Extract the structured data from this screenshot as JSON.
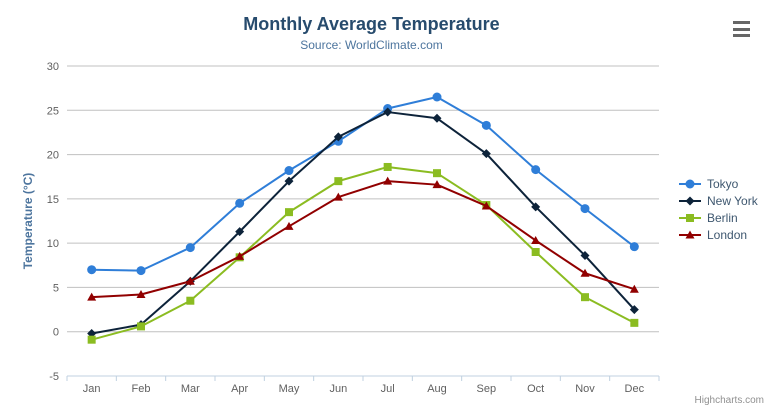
{
  "header": {
    "title": "Monthly Average Temperature",
    "subtitle": "Source: WorldClimate.com"
  },
  "credits": "Highcharts.com",
  "chart_data": {
    "type": "line",
    "title": "Monthly Average Temperature",
    "subtitle": "Source: WorldClimate.com",
    "xlabel": "",
    "ylabel": "Temperature (°C)",
    "categories": [
      "Jan",
      "Feb",
      "Mar",
      "Apr",
      "May",
      "Jun",
      "Jul",
      "Aug",
      "Sep",
      "Oct",
      "Nov",
      "Dec"
    ],
    "ylim": [
      -5,
      30
    ],
    "ytick_interval": 5,
    "grid": true,
    "legend_position": "right",
    "series": [
      {
        "name": "Tokyo",
        "color": "#2f7ed8",
        "marker": "circle",
        "values": [
          7.0,
          6.9,
          9.5,
          14.5,
          18.2,
          21.5,
          25.2,
          26.5,
          23.3,
          18.3,
          13.9,
          9.6
        ]
      },
      {
        "name": "New York",
        "color": "#0d233a",
        "marker": "diamond",
        "values": [
          -0.2,
          0.8,
          5.7,
          11.3,
          17.0,
          22.0,
          24.8,
          24.1,
          20.1,
          14.1,
          8.6,
          2.5
        ]
      },
      {
        "name": "Berlin",
        "color": "#8bbc21",
        "marker": "square",
        "values": [
          -0.9,
          0.6,
          3.5,
          8.4,
          13.5,
          17.0,
          18.6,
          17.9,
          14.3,
          9.0,
          3.9,
          1.0
        ]
      },
      {
        "name": "London",
        "color": "#910000",
        "marker": "triangle",
        "values": [
          3.9,
          4.2,
          5.7,
          8.5,
          11.9,
          15.2,
          17.0,
          16.6,
          14.2,
          10.3,
          6.6,
          4.8
        ]
      }
    ]
  },
  "colors": {
    "title": "#274b6d",
    "subtitle": "#4d759e",
    "axis_title": "#4d759e",
    "axis_label": "#606060",
    "legend_text": "#3E576F",
    "gridline": "#C0C0C0",
    "axis_line": "#C0D0E0",
    "credits": "#909090",
    "menu_icon": "#666666",
    "background": "#ffffff"
  }
}
